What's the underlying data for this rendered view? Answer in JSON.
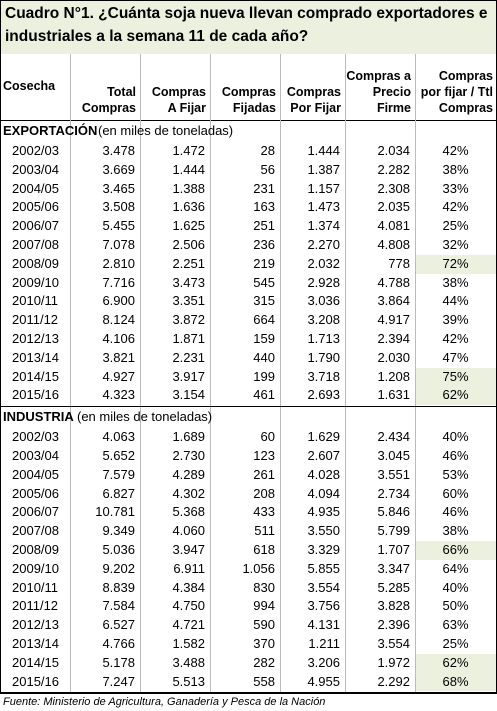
{
  "title": [
    "Cuadro N°1. ¿Cuánta soja nueva llevan comprado exportadores e",
    "industriales a la semana 11 de cada año?"
  ],
  "header": [
    [
      "Cosecha"
    ],
    [
      "Total",
      "Compras"
    ],
    [
      "Compras",
      "A Fijar"
    ],
    [
      "Compras",
      "Fijadas"
    ],
    [
      "Compras",
      "Por Fijar"
    ],
    [
      "Compras a",
      "Precio",
      "Firme"
    ],
    [
      "Compras",
      "por fijar / Ttl",
      "Compras"
    ]
  ],
  "highlight_color": "#ebf1de",
  "sections": [
    {
      "title": "EXPORTACIÓN",
      "unit": "(en miles de toneladas)",
      "highlighted_rows": [
        6,
        12,
        13
      ],
      "rows": [
        [
          "2002/03",
          "3.478",
          "1.472",
          "28",
          "1.444",
          "2.034",
          "42%"
        ],
        [
          "2003/04",
          "3.669",
          "1.444",
          "56",
          "1.387",
          "2.282",
          "38%"
        ],
        [
          "2004/05",
          "3.465",
          "1.388",
          "231",
          "1.157",
          "2.308",
          "33%"
        ],
        [
          "2005/06",
          "3.508",
          "1.636",
          "163",
          "1.473",
          "2.035",
          "42%"
        ],
        [
          "2006/07",
          "5.455",
          "1.625",
          "251",
          "1.374",
          "4.081",
          "25%"
        ],
        [
          "2007/08",
          "7.078",
          "2.506",
          "236",
          "2.270",
          "4.808",
          "32%"
        ],
        [
          "2008/09",
          "2.810",
          "2.251",
          "219",
          "2.032",
          "778",
          "72%"
        ],
        [
          "2009/10",
          "7.716",
          "3.473",
          "545",
          "2.928",
          "4.788",
          "38%"
        ],
        [
          "2010/11",
          "6.900",
          "3.351",
          "315",
          "3.036",
          "3.864",
          "44%"
        ],
        [
          "2011/12",
          "8.124",
          "3.872",
          "664",
          "3.208",
          "4.917",
          "39%"
        ],
        [
          "2012/13",
          "4.106",
          "1.871",
          "159",
          "1.713",
          "2.394",
          "42%"
        ],
        [
          "2013/14",
          "3.821",
          "2.231",
          "440",
          "1.790",
          "2.030",
          "47%"
        ],
        [
          "2014/15",
          "4.927",
          "3.917",
          "199",
          "3.718",
          "1.208",
          "75%"
        ],
        [
          "2015/16",
          "4.323",
          "3.154",
          "461",
          "2.693",
          "1.631",
          "62%"
        ]
      ]
    },
    {
      "title": "INDUSTRIA",
      "unit": "(en miles de toneladas)",
      "highlighted_rows": [
        6,
        12,
        13
      ],
      "rows": [
        [
          "2002/03",
          "4.063",
          "1.689",
          "60",
          "1.629",
          "2.434",
          "40%"
        ],
        [
          "2003/04",
          "5.652",
          "2.730",
          "123",
          "2.607",
          "3.045",
          "46%"
        ],
        [
          "2004/05",
          "7.579",
          "4.289",
          "261",
          "4.028",
          "3.551",
          "53%"
        ],
        [
          "2005/06",
          "6.827",
          "4.302",
          "208",
          "4.094",
          "2.734",
          "60%"
        ],
        [
          "2006/07",
          "10.781",
          "5.368",
          "433",
          "4.935",
          "5.846",
          "46%"
        ],
        [
          "2007/08",
          "9.349",
          "4.060",
          "511",
          "3.550",
          "5.799",
          "38%"
        ],
        [
          "2008/09",
          "5.036",
          "3.947",
          "618",
          "3.329",
          "1.707",
          "66%"
        ],
        [
          "2009/10",
          "9.202",
          "6.911",
          "1.056",
          "5.855",
          "3.347",
          "64%"
        ],
        [
          "2010/11",
          "8.839",
          "4.384",
          "830",
          "3.554",
          "5.285",
          "40%"
        ],
        [
          "2011/12",
          "7.584",
          "4.750",
          "994",
          "3.756",
          "3.828",
          "50%"
        ],
        [
          "2012/13",
          "6.527",
          "4.721",
          "590",
          "4.131",
          "2.396",
          "63%"
        ],
        [
          "2013/14",
          "4.766",
          "1.582",
          "370",
          "1.211",
          "3.554",
          "25%"
        ],
        [
          "2014/15",
          "5.178",
          "3.488",
          "282",
          "3.206",
          "1.972",
          "62%"
        ],
        [
          "2015/16",
          "7.247",
          "5.513",
          "558",
          "4.955",
          "2.292",
          "68%"
        ]
      ]
    }
  ],
  "footer": "Fuente: Ministerio de Agricultura, Ganadería y Pesca de la Nación"
}
